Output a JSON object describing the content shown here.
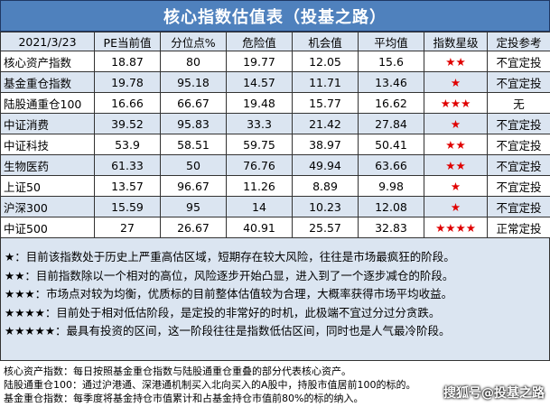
{
  "title": "核心指数估值表（投基之路）",
  "headers": [
    "2021/3/23",
    "PE当前值",
    "分位点%",
    "危险值",
    "机会值",
    "平均值",
    "指数星级",
    "定投参考"
  ],
  "rows": [
    {
      "name": "核心资产指数",
      "pe": "18.87",
      "pct": "80",
      "danger": "19.77",
      "chance": "12.05",
      "avg": "15.6",
      "stars": "★★",
      "ref": "不宜定投"
    },
    {
      "name": "基金重仓指数",
      "pe": "19.78",
      "pct": "95.18",
      "danger": "14.57",
      "chance": "11.71",
      "avg": "13.46",
      "stars": "★",
      "ref": "不宜定投"
    },
    {
      "name": "陆股通重仓100",
      "pe": "16.66",
      "pct": "66.67",
      "danger": "19.48",
      "chance": "15.77",
      "avg": "16.62",
      "stars": "★★★",
      "ref": "无"
    },
    {
      "name": "中证消费",
      "pe": "39.52",
      "pct": "95.83",
      "danger": "33.3",
      "chance": "21.42",
      "avg": "27.84",
      "stars": "★",
      "ref": "不宜定投"
    },
    {
      "name": "中证科技",
      "pe": "53.9",
      "pct": "58.51",
      "danger": "59.75",
      "chance": "38.97",
      "avg": "50.41",
      "stars": "★★",
      "ref": "不宜定投"
    },
    {
      "name": "生物医药",
      "pe": "61.33",
      "pct": "50",
      "danger": "76.76",
      "chance": "49.94",
      "avg": "63.66",
      "stars": "★★",
      "ref": "不宜定投"
    },
    {
      "name": "上证50",
      "pe": "13.57",
      "pct": "96.67",
      "danger": "11.26",
      "chance": "8.89",
      "avg": "9.98",
      "stars": "★",
      "ref": "不宜定投"
    },
    {
      "name": "沪深300",
      "pe": "15.59",
      "pct": "95",
      "danger": "14",
      "chance": "10.23",
      "avg": "12.08",
      "stars": "★",
      "ref": "不宜定投"
    },
    {
      "name": "中证500",
      "pe": "27",
      "pct": "26.67",
      "danger": "40.91",
      "chance": "25.57",
      "avg": "32.83",
      "stars": "★★★★",
      "ref": "正常定投"
    }
  ],
  "legend": [
    {
      "stars": "★",
      "text": "：目前该指数处于历史上严重高估区域，短期存在较大风险，往往是市场最疯狂的阶段。"
    },
    {
      "stars": "★★",
      "text": "：目前指数除以一个相对的高位，风险逐步开始凸显，进入到了一个逐步减仓的阶段。"
    },
    {
      "stars": "★★★",
      "text": "：市场点对较为均衡，优质标的目前整体估值较为合理，大概率获得市场平均收益。"
    },
    {
      "stars": "★★★★",
      "text": "：目前处于相对低估阶段，是定投的非常好的时机，此极端不宜过分过分贪跌。"
    },
    {
      "stars": "★★★★★",
      "text": "：最具有投资的区间，这一阶段往往是指数低估区间，同时也是人气最冷阶段。"
    }
  ],
  "notes": [
    "核心资产指数：每日按照基金重仓指数与陆股通重仓重叠的部分代表核心资产。",
    "陆股通重仓100：通过沪港通、深港通机制买入北向买入的A股中，持股市值居前100的标的。",
    "基金重仓指数：每季度将基金持仓市值累计和占基金持仓市值前80%的标的纳入。"
  ],
  "watermark": "搜狐号@投基之路"
}
